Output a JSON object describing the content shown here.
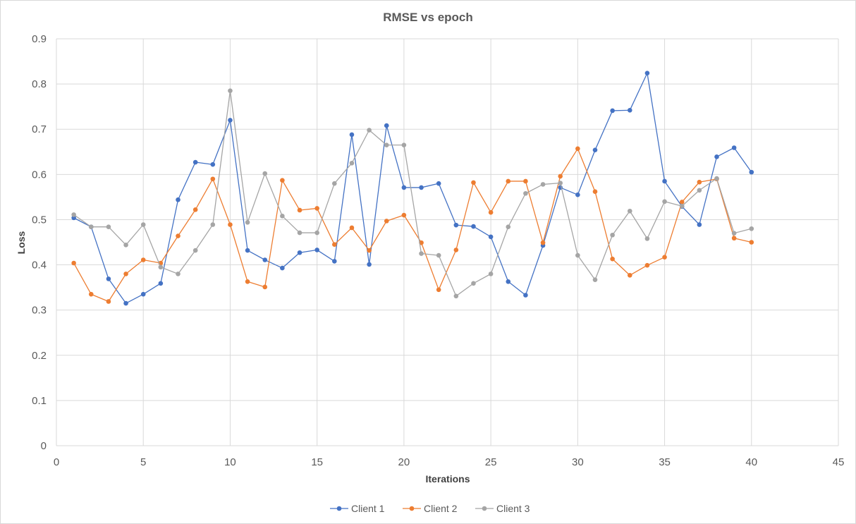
{
  "chart_data": {
    "type": "line",
    "title": "RMSE vs epoch",
    "xlabel": "Iterations",
    "ylabel": "Loss",
    "xlim": [
      0,
      45
    ],
    "ylim": [
      0,
      0.9
    ],
    "xticks": [
      "0",
      "5",
      "10",
      "15",
      "20",
      "25",
      "30",
      "35",
      "40",
      "45"
    ],
    "yticks": [
      "0",
      "0.1",
      "0.2",
      "0.3",
      "0.4",
      "0.5",
      "0.6",
      "0.7",
      "0.8",
      "0.9"
    ],
    "grid": true,
    "legend_position": "bottom",
    "x": [
      1,
      2,
      3,
      4,
      5,
      6,
      7,
      8,
      9,
      10,
      11,
      12,
      13,
      14,
      15,
      16,
      17,
      18,
      19,
      20,
      21,
      22,
      23,
      24,
      25,
      26,
      27,
      28,
      29,
      30,
      31,
      32,
      33,
      34,
      35,
      36,
      37,
      38,
      39,
      40
    ],
    "series": [
      {
        "name": "Client 1",
        "color": "#4472c4",
        "values": [
          0.504,
          0.484,
          0.369,
          0.315,
          0.335,
          0.359,
          0.544,
          0.627,
          0.622,
          0.72,
          0.432,
          0.411,
          0.393,
          0.427,
          0.433,
          0.408,
          0.688,
          0.401,
          0.708,
          0.571,
          0.571,
          0.58,
          0.488,
          0.485,
          0.462,
          0.363,
          0.333,
          0.443,
          0.571,
          0.555,
          0.654,
          0.741,
          0.742,
          0.824,
          0.585,
          0.529,
          0.489,
          0.639,
          0.659,
          0.605
        ]
      },
      {
        "name": "Client 2",
        "color": "#ed7d31",
        "values": [
          0.404,
          0.335,
          0.319,
          0.38,
          0.411,
          0.404,
          0.464,
          0.522,
          0.59,
          0.489,
          0.363,
          0.351,
          0.587,
          0.521,
          0.525,
          0.445,
          0.482,
          0.432,
          0.497,
          0.51,
          0.449,
          0.345,
          0.433,
          0.582,
          0.516,
          0.585,
          0.585,
          0.449,
          0.596,
          0.657,
          0.562,
          0.413,
          0.377,
          0.399,
          0.417,
          0.539,
          0.583,
          0.59,
          0.459,
          0.45
        ]
      },
      {
        "name": "Client 3",
        "color": "#a5a5a5",
        "values": [
          0.511,
          0.484,
          0.484,
          0.444,
          0.489,
          0.395,
          0.38,
          0.432,
          0.489,
          0.785,
          0.494,
          0.602,
          0.508,
          0.471,
          0.471,
          0.58,
          0.625,
          0.698,
          0.665,
          0.665,
          0.425,
          0.421,
          0.331,
          0.359,
          0.38,
          0.484,
          0.558,
          0.578,
          0.581,
          0.421,
          0.367,
          0.466,
          0.519,
          0.458,
          0.54,
          0.53,
          0.565,
          0.591,
          0.47,
          0.48
        ]
      }
    ]
  }
}
